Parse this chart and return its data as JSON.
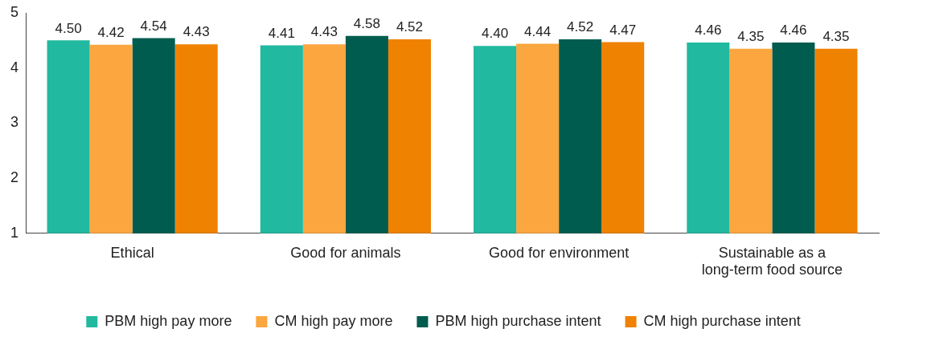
{
  "chart_data": {
    "type": "bar",
    "categories": [
      "Ethical",
      "Good for animals",
      "Good for environment",
      "Sustainable as a long-term food source"
    ],
    "series": [
      {
        "name": "PBM high pay more",
        "color": "#21b9a0",
        "values": [
          4.5,
          4.41,
          4.4,
          4.46
        ],
        "value_labels": [
          "4.50",
          "4.41",
          "4.40",
          "4.46"
        ]
      },
      {
        "name": "CM high pay more",
        "color": "#fba63f",
        "values": [
          4.42,
          4.43,
          4.44,
          4.35
        ],
        "value_labels": [
          "4.42",
          "4.43",
          "4.44",
          "4.35"
        ]
      },
      {
        "name": "PBM high purchase intent",
        "color": "#005c4f",
        "values": [
          4.54,
          4.58,
          4.52,
          4.46
        ],
        "value_labels": [
          "4.54",
          "4.58",
          "4.52",
          "4.46"
        ]
      },
      {
        "name": "CM high purchase intent",
        "color": "#ef8200",
        "values": [
          4.43,
          4.52,
          4.47,
          4.35
        ],
        "value_labels": [
          "4.43",
          "4.52",
          "4.47",
          "4.35"
        ]
      }
    ],
    "ylim": [
      1,
      5
    ],
    "yticks": [
      1,
      2,
      3,
      4,
      5
    ],
    "grid": false,
    "legend": "bottom"
  }
}
